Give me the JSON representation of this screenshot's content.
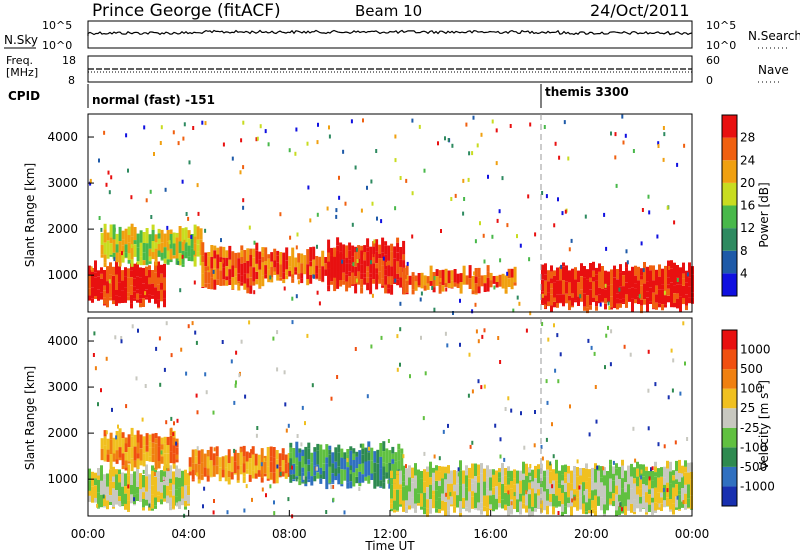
{
  "header": {
    "station": "Prince George (fitACF)",
    "beam": "Beam 10",
    "date": "24/Oct/2011"
  },
  "noise_panel": {
    "left_label": "N.Sky",
    "left_ticks": [
      "10^5",
      "10^0"
    ],
    "right_label": "N.Search",
    "right_ticks": [
      "10^5",
      "10^0"
    ]
  },
  "freq_panel": {
    "left_label_1": "Freq.",
    "left_label_2": "[MHz]",
    "left_ticks": [
      "18",
      "8"
    ],
    "right_label": "Nave",
    "right_ticks": [
      "60",
      "0"
    ]
  },
  "cpid_panel": {
    "label": "CPID",
    "mode_1": "normal (fast) -151",
    "mode_2": "themis 3300"
  },
  "chart_data": [
    {
      "type": "heatmap",
      "name_panel": "power",
      "ylabel": "Slant Range [km]",
      "xlabel": "",
      "yticks": [
        "1000",
        "2000",
        "3000",
        "4000"
      ],
      "ylim": [
        200,
        4500
      ],
      "xlim_hours": [
        0,
        24
      ],
      "colorbar": {
        "label": "Power [dB]",
        "ticks": [
          "4",
          "8",
          "12",
          "16",
          "20",
          "24",
          "28"
        ],
        "colors": [
          "#1010e0",
          "#1e5aa8",
          "#2e8a60",
          "#48b84a",
          "#c8dc20",
          "#f0a010",
          "#f06010",
          "#e81010"
        ]
      },
      "bands_description": [
        {
          "start": 0.0,
          "end": 3.0,
          "r0": 400,
          "r1": 1200,
          "level": 7
        },
        {
          "start": 0.5,
          "end": 4.5,
          "r0": 1300,
          "r1": 2000,
          "level": 4
        },
        {
          "start": 4.5,
          "end": 7.0,
          "r0": 700,
          "r1": 1600,
          "level": 6
        },
        {
          "start": 7.0,
          "end": 10.0,
          "r0": 900,
          "r1": 1500,
          "level": 6
        },
        {
          "start": 9.5,
          "end": 12.5,
          "r0": 700,
          "r1": 1700,
          "level": 7
        },
        {
          "start": 12.5,
          "end": 17.0,
          "r0": 700,
          "r1": 1100,
          "level": 6
        },
        {
          "start": 18.0,
          "end": 24.0,
          "r0": 300,
          "r1": 1200,
          "level": 7
        }
      ]
    },
    {
      "type": "heatmap",
      "name_panel": "velocity",
      "ylabel": "Slant Range [km]",
      "xlabel": "Time UT",
      "yticks": [
        "1000",
        "2000",
        "3000",
        "4000"
      ],
      "ylim": [
        200,
        4500
      ],
      "xlim_hours": [
        0,
        24
      ],
      "xticks": [
        "00:00",
        "04:00",
        "08:00",
        "12:00",
        "16:00",
        "20:00",
        "00:00"
      ],
      "colorbar": {
        "label": "Velocity [m s",
        "label_sup": "-1",
        "label_end": "]",
        "ticks": [
          "1000",
          "500",
          "100",
          "25",
          "-25",
          "-100",
          "-500",
          "-1000"
        ],
        "colors": [
          "#1830b0",
          "#3070c0",
          "#2e8a50",
          "#60c040",
          "#c8c8c0",
          "#f0c020",
          "#f08010",
          "#f05010",
          "#e81010"
        ]
      },
      "bands_description": [
        {
          "start": 0.0,
          "end": 4.0,
          "r0": 400,
          "r1": 1200,
          "level": 4
        },
        {
          "start": 0.5,
          "end": 3.5,
          "r0": 1300,
          "r1": 2000,
          "level": 6
        },
        {
          "start": 4.0,
          "end": 8.0,
          "r0": 1000,
          "r1": 1600,
          "level": 6
        },
        {
          "start": 8.0,
          "end": 12.5,
          "r0": 900,
          "r1": 1700,
          "level": 2
        },
        {
          "start": 12.0,
          "end": 24.0,
          "r0": 300,
          "r1": 1300,
          "level": 4
        }
      ]
    }
  ]
}
